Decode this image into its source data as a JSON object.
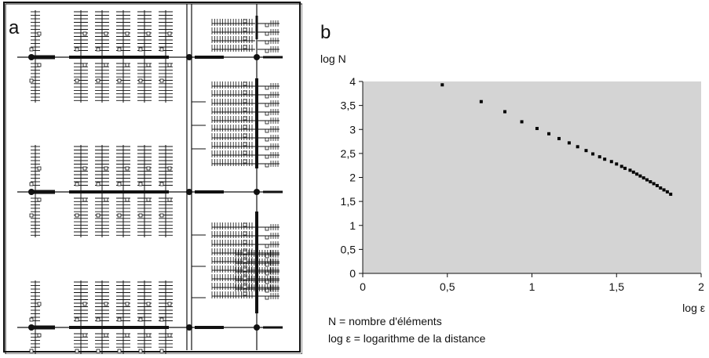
{
  "panel_a": {
    "letter": "a"
  },
  "panel_b": {
    "letter": "b"
  },
  "chart_data": {
    "type": "scatter",
    "title": "",
    "ylabel": "log N",
    "xlabel": "log ε",
    "xlim": [
      0,
      2
    ],
    "ylim": [
      0,
      4
    ],
    "x_ticks": [
      0,
      0.5,
      1,
      1.5,
      2
    ],
    "x_tick_labels": [
      "0",
      "0,5",
      "1",
      "1,5",
      "2"
    ],
    "y_ticks": [
      0,
      0.5,
      1,
      1.5,
      2,
      2.5,
      3,
      3.5,
      4
    ],
    "y_tick_labels": [
      "0",
      "0,5",
      "1",
      "1,5",
      "2",
      "2,5",
      "3",
      "3,5",
      "4"
    ],
    "grid": false,
    "background": "#d4d4d4",
    "marker_color": "#000000",
    "series": [
      {
        "x": [
          0.47,
          0.7,
          0.84,
          0.94,
          1.03,
          1.1,
          1.16,
          1.22,
          1.27,
          1.32,
          1.36,
          1.4,
          1.43,
          1.47,
          1.5,
          1.53,
          1.55,
          1.58,
          1.6,
          1.62,
          1.64,
          1.66,
          1.68,
          1.7,
          1.72,
          1.74,
          1.76,
          1.78,
          1.8,
          1.82
        ],
        "y": [
          3.93,
          3.58,
          3.37,
          3.16,
          3.02,
          2.91,
          2.81,
          2.72,
          2.64,
          2.56,
          2.49,
          2.43,
          2.38,
          2.33,
          2.28,
          2.23,
          2.19,
          2.15,
          2.11,
          2.07,
          2.03,
          1.99,
          1.95,
          1.91,
          1.87,
          1.83,
          1.78,
          1.74,
          1.7,
          1.65
        ]
      }
    ],
    "notes": [
      "N = nombre d'éléments",
      "log ε = logarithme de la distance"
    ]
  }
}
